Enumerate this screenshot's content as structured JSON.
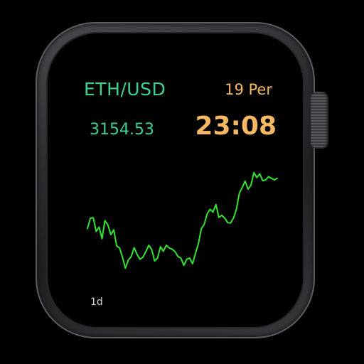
{
  "watch": {
    "pair": "ETH/USD",
    "date": "19 Per",
    "price": "3154.53",
    "time": "23:08",
    "range": "1d"
  },
  "colors": {
    "pair": "#3dd38f",
    "price": "#3dd38f",
    "date": "#f6b860",
    "time": "#f6b860",
    "range": "#d8d8d8",
    "line": "#2fe52f",
    "background": "#000000"
  },
  "icons": {
    "crown": "digital-crown"
  },
  "chart_data": {
    "type": "line",
    "x": [
      0,
      1,
      2,
      3,
      4,
      5,
      6,
      7,
      8,
      9,
      10,
      11,
      12,
      13,
      14,
      15,
      16,
      17,
      18,
      19,
      20,
      21,
      22,
      23,
      24,
      25,
      26,
      27,
      28,
      29,
      30,
      31,
      32,
      33,
      34,
      35,
      36,
      37,
      38,
      39,
      40,
      41,
      42,
      43,
      44,
      45,
      46,
      47,
      48,
      49,
      50,
      51,
      52,
      53,
      54,
      55,
      56,
      57,
      58,
      59,
      60,
      61,
      62,
      63,
      64,
      65
    ],
    "values": [
      3033,
      3059,
      3060,
      3026,
      3037,
      3008,
      3053,
      3042,
      3018,
      3030,
      2990,
      2985,
      2962,
      2935,
      2955,
      2964,
      2986,
      2969,
      2957,
      2962,
      2976,
      2992,
      2981,
      2953,
      2960,
      2988,
      2977,
      2992,
      2985,
      2982,
      2976,
      2964,
      2960,
      2942,
      2957,
      2960,
      2946,
      2972,
      2996,
      3033,
      3044,
      3070,
      3081,
      3074,
      3093,
      3061,
      3066,
      3059,
      3048,
      3047,
      3059,
      3081,
      3121,
      3135,
      3151,
      3131,
      3141,
      3172,
      3160,
      3169,
      3152,
      3154,
      3162,
      3158,
      3154,
      3158
    ],
    "title": "",
    "xlabel": "",
    "ylabel": "",
    "ylim": [
      2900,
      3200
    ],
    "grid": false,
    "legend": "none"
  }
}
